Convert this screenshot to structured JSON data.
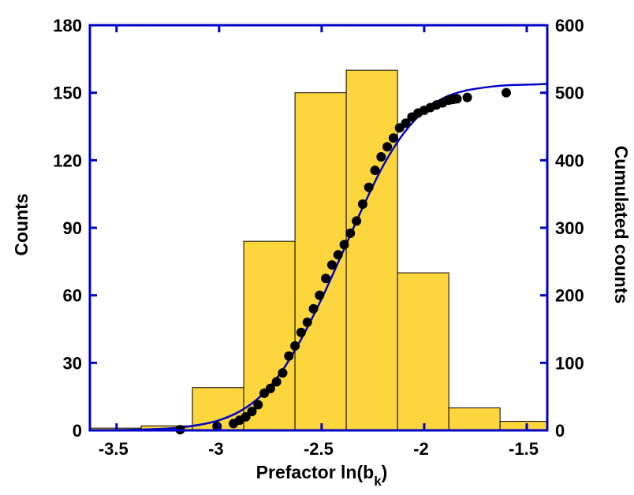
{
  "chart_data": {
    "type": "bar",
    "xlabel": "Prefactor ln(b",
    "xlabel_sub": "k",
    "xlabel_close": ")",
    "ylabel_left": "Counts",
    "ylabel_right": "Cumulated counts",
    "xlim": [
      -3.63,
      -1.4
    ],
    "ylim_left": [
      0,
      180
    ],
    "ylim_right": [
      0,
      600
    ],
    "x_ticks": [
      -3.5,
      -3,
      -2.5,
      -2,
      -1.5
    ],
    "x_tick_labels": [
      "-3.5",
      "-3",
      "-2.5",
      "-2",
      "-1.5"
    ],
    "y_left_ticks": [
      0,
      30,
      60,
      90,
      120,
      150,
      180
    ],
    "y_left_tick_labels": [
      "0",
      "30",
      "60",
      "90",
      "120",
      "150",
      "180"
    ],
    "y_right_ticks": [
      0,
      100,
      200,
      300,
      400,
      500,
      600
    ],
    "y_right_tick_labels": [
      "0",
      "100",
      "200",
      "300",
      "400",
      "500",
      "600"
    ],
    "grid": false,
    "histogram": {
      "bins": [
        {
          "x0": -3.63,
          "x1": -3.38,
          "count": 1
        },
        {
          "x0": -3.38,
          "x1": -3.13,
          "count": 2
        },
        {
          "x0": -3.13,
          "x1": -2.88,
          "count": 19
        },
        {
          "x0": -2.88,
          "x1": -2.63,
          "count": 84
        },
        {
          "x0": -2.63,
          "x1": -2.38,
          "count": 150
        },
        {
          "x0": -2.38,
          "x1": -2.13,
          "count": 160
        },
        {
          "x0": -2.13,
          "x1": -1.88,
          "count": 70
        },
        {
          "x0": -1.88,
          "x1": -1.63,
          "count": 10
        },
        {
          "x0": -1.63,
          "x1": -1.4,
          "count": 4
        }
      ]
    },
    "cumulative_fit": {
      "axis": "right",
      "x": [
        -3.6,
        -3.4,
        -3.3,
        -3.2,
        -3.1,
        -3.0,
        -2.9,
        -2.8,
        -2.7,
        -2.6,
        -2.5,
        -2.4,
        -2.3,
        -2.2,
        -2.1,
        -2.0,
        -1.9,
        -1.8,
        -1.7,
        -1.6,
        -1.5,
        -1.4
      ],
      "y": [
        0,
        1,
        2,
        4,
        8,
        15,
        28,
        50,
        85,
        135,
        195,
        262,
        330,
        392,
        440,
        473,
        493,
        503,
        508,
        511,
        512,
        513
      ]
    },
    "cumulative_points": {
      "axis": "right",
      "x": [
        -3.19,
        -3.01,
        -2.93,
        -2.9,
        -2.87,
        -2.84,
        -2.81,
        -2.78,
        -2.75,
        -2.72,
        -2.69,
        -2.66,
        -2.63,
        -2.6,
        -2.57,
        -2.54,
        -2.51,
        -2.48,
        -2.45,
        -2.42,
        -2.39,
        -2.36,
        -2.33,
        -2.3,
        -2.27,
        -2.24,
        -2.21,
        -2.18,
        -2.15,
        -2.12,
        -2.09,
        -2.06,
        -2.03,
        -2.0,
        -1.97,
        -1.94,
        -1.91,
        -1.88,
        -1.86,
        -1.84,
        -1.79,
        -1.6
      ],
      "y": [
        1,
        6,
        10,
        15,
        20,
        28,
        38,
        55,
        62,
        72,
        85,
        110,
        125,
        145,
        160,
        180,
        200,
        225,
        245,
        260,
        275,
        292,
        310,
        335,
        360,
        385,
        405,
        420,
        433,
        448,
        455,
        464,
        470,
        474,
        478,
        482,
        485,
        489,
        490,
        491,
        493,
        500
      ]
    },
    "colors": {
      "bar_fill": "#FCD63C",
      "bar_stroke": "#000000",
      "axis_frame": "#0000C8",
      "fit_line": "#0000C8",
      "points": "#000000"
    }
  }
}
